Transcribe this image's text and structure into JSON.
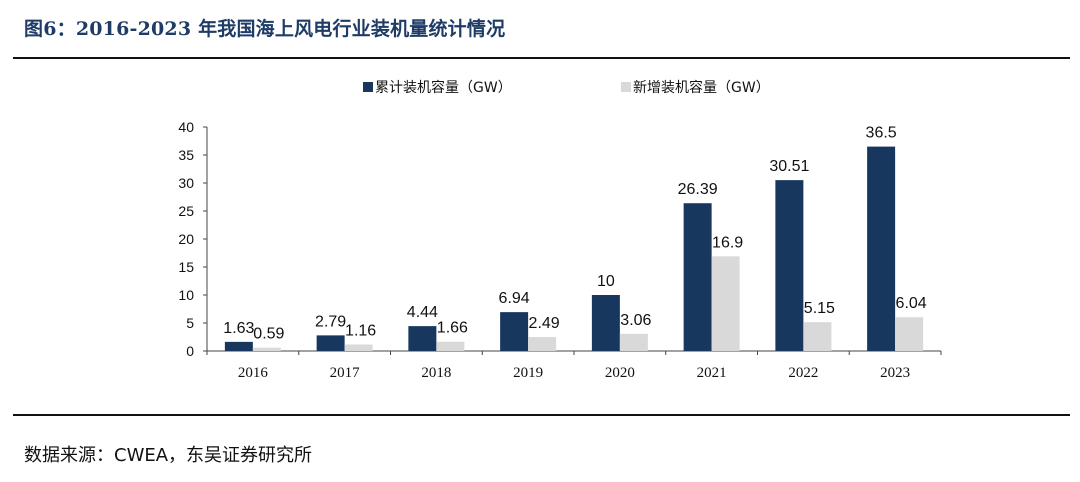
{
  "header": {
    "title": "图6：2016-2023 年我国海上风电行业装机量统计情况"
  },
  "footer": {
    "source": "数据来源：CWEA，东吴证券研究所"
  },
  "colors": {
    "cumulative": "#17375e",
    "new": "#d9d9d9",
    "title": "#1f3c67"
  },
  "chart_data": {
    "type": "bar",
    "categories": [
      "2016",
      "2017",
      "2018",
      "2019",
      "2020",
      "2021",
      "2022",
      "2023"
    ],
    "series": [
      {
        "name": "累计装机容量（GW）",
        "values": [
          1.63,
          2.79,
          4.44,
          6.94,
          10,
          26.39,
          30.51,
          36.5
        ],
        "labels": [
          "1.63",
          "2.79",
          "4.44",
          "6.94",
          "10",
          "26.39",
          "30.51",
          "36.5"
        ]
      },
      {
        "name": "新增装机容量（GW）",
        "values": [
          0.59,
          1.16,
          1.66,
          2.49,
          3.06,
          16.9,
          5.15,
          6.04
        ],
        "labels": [
          "0.59",
          "1.16",
          "1.66",
          "2.49",
          "3.06",
          "16.9",
          "5.15",
          "6.04"
        ]
      }
    ],
    "y_ticks": [
      "0",
      "5",
      "10",
      "15",
      "20",
      "25",
      "30",
      "35",
      "40"
    ],
    "ylim": [
      0,
      40
    ],
    "grid": false,
    "legend": "top-center"
  }
}
